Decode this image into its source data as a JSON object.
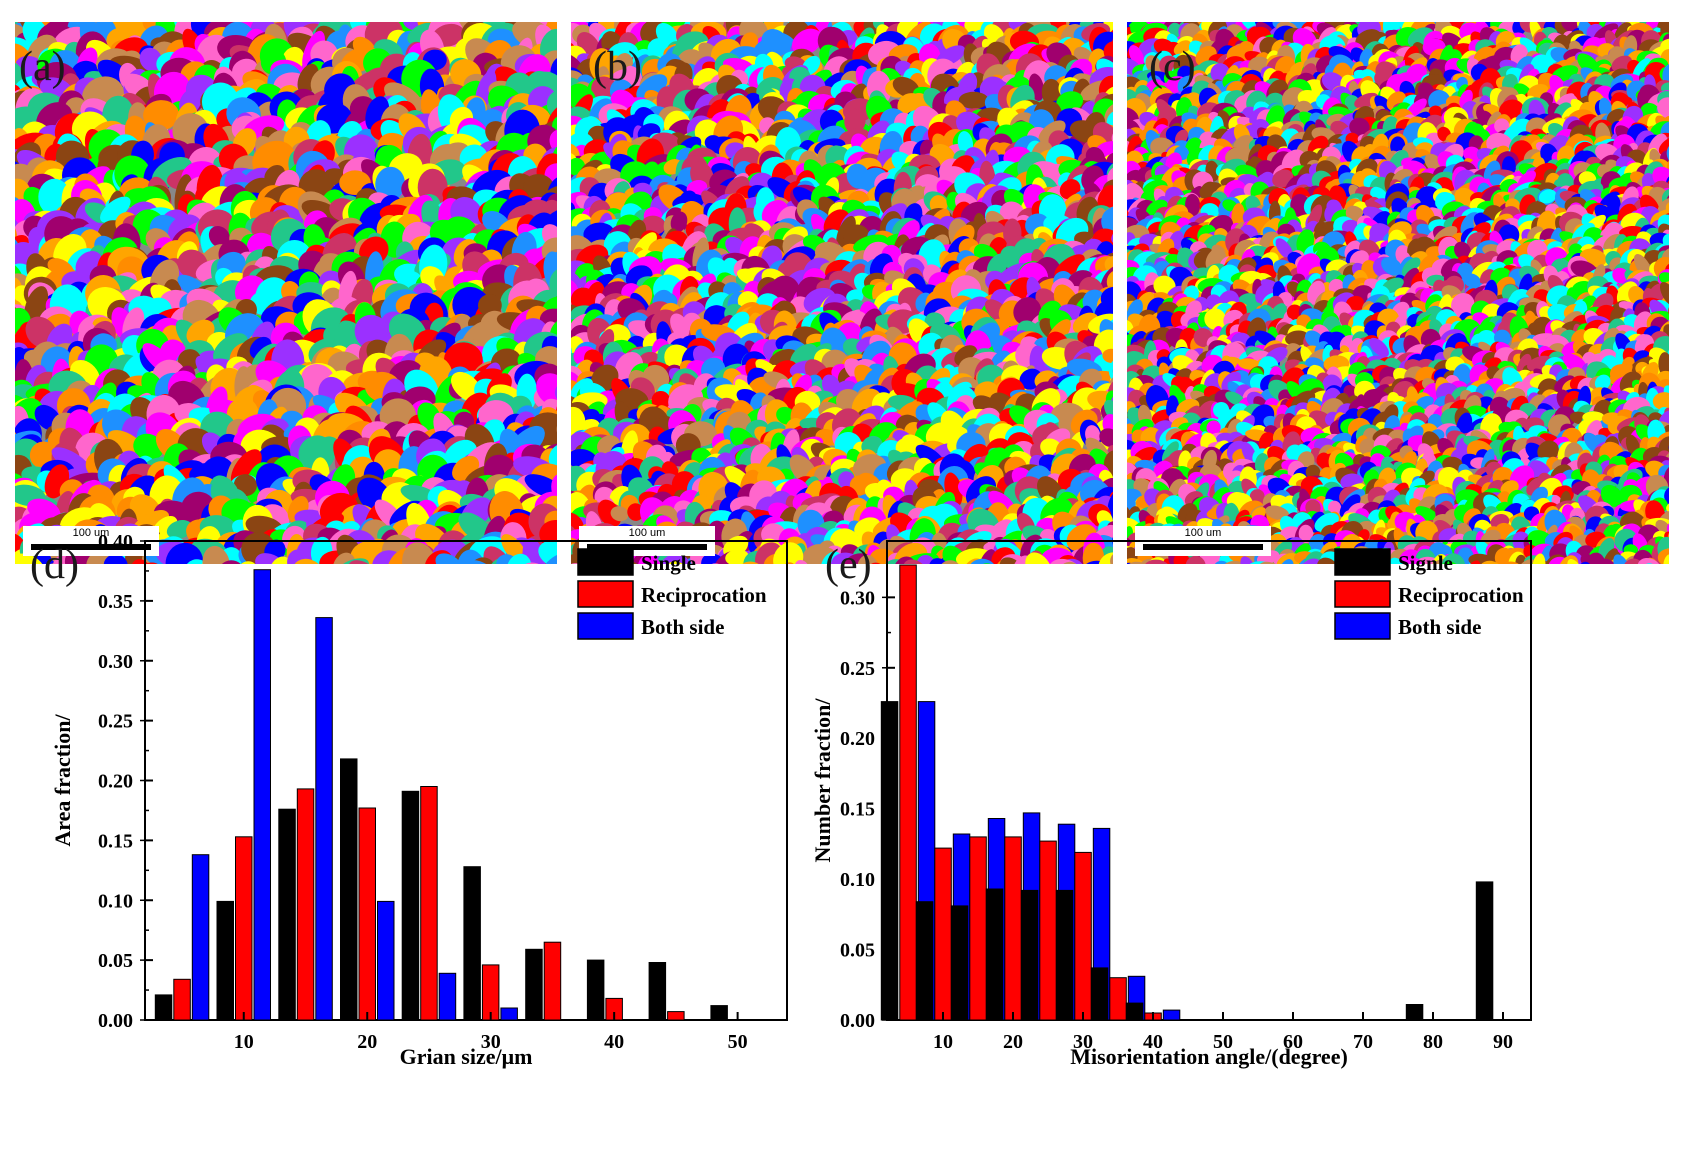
{
  "maps": [
    {
      "label": "(a)",
      "scale_label": "100 um",
      "seed": 11,
      "grain_density": "coarse"
    },
    {
      "label": "(b)",
      "scale_label": "100 um",
      "seed": 29,
      "grain_density": "medium"
    },
    {
      "label": "(c)",
      "scale_label": "100 um",
      "seed": 47,
      "grain_density": "fine"
    }
  ],
  "grain_colors": [
    "#ff0000",
    "#0000ff",
    "#ffff00",
    "#00ffff",
    "#ff00ff",
    "#00ff00",
    "#ff8c00",
    "#a0006e",
    "#c88a50",
    "#22c78a",
    "#ff66cc",
    "#9b30ff",
    "#cc3366",
    "#1e90ff",
    "#ffa500",
    "#8b4513"
  ],
  "chart_data": [
    {
      "panel_label": "(d)",
      "type": "bar",
      "xlabel": "Grian size/μm",
      "ylabel": "Area fraction/",
      "xlim": [
        2,
        54
      ],
      "ylim": [
        0,
        0.4
      ],
      "xticks": [
        10,
        20,
        30,
        40,
        50
      ],
      "yticks": [
        "0.00",
        "0.05",
        "0.10",
        "0.15",
        "0.20",
        "0.25",
        "0.30",
        "0.35",
        "0.40"
      ],
      "categories": [
        5,
        10,
        15,
        20,
        25,
        30,
        35,
        40,
        45,
        50
      ],
      "legend_position": "top-right",
      "series": [
        {
          "name": "Single",
          "color": "#000000",
          "values": [
            0.021,
            0.099,
            0.176,
            0.218,
            0.191,
            0.128,
            0.059,
            0.05,
            0.048,
            0.012
          ]
        },
        {
          "name": "Reciprocation",
          "color": "#ff0000",
          "values": [
            0.034,
            0.153,
            0.193,
            0.177,
            0.195,
            0.046,
            0.065,
            0.018,
            0.007,
            0.0
          ]
        },
        {
          "name": "Both side",
          "color": "#0000ff",
          "values": [
            0.138,
            0.376,
            0.336,
            0.099,
            0.039,
            0.01,
            0.0,
            0.0,
            0.0,
            0.0
          ]
        }
      ]
    },
    {
      "panel_label": "(e)",
      "type": "bar",
      "xlabel": "Misorientation angle/(degree)",
      "ylabel": "Number fraction/",
      "xlim": [
        2,
        94
      ],
      "ylim": [
        0,
        0.34
      ],
      "xticks": [
        10,
        20,
        30,
        40,
        50,
        60,
        70,
        80,
        90
      ],
      "yticks": [
        "0.00",
        "0.05",
        "0.10",
        "0.15",
        "0.20",
        "0.25",
        "0.30"
      ],
      "categories": [
        5,
        10,
        15,
        20,
        25,
        30,
        35,
        40,
        80,
        90
      ],
      "legend_position": "top-right",
      "series": [
        {
          "name": "Signle",
          "color": "#000000",
          "values": [
            0.226,
            0.084,
            0.081,
            0.093,
            0.092,
            0.092,
            0.037,
            0.012,
            0.011,
            0.098
          ]
        },
        {
          "name": "Reciprocation",
          "color": "#ff0000",
          "values": [
            0.323,
            0.122,
            0.13,
            0.13,
            0.127,
            0.119,
            0.03,
            0.005,
            0.0,
            0.0
          ]
        },
        {
          "name": "Both side",
          "color": "#0000ff",
          "values": [
            0.226,
            0.132,
            0.143,
            0.147,
            0.139,
            0.136,
            0.031,
            0.007,
            0.0,
            0.0
          ]
        }
      ]
    }
  ]
}
